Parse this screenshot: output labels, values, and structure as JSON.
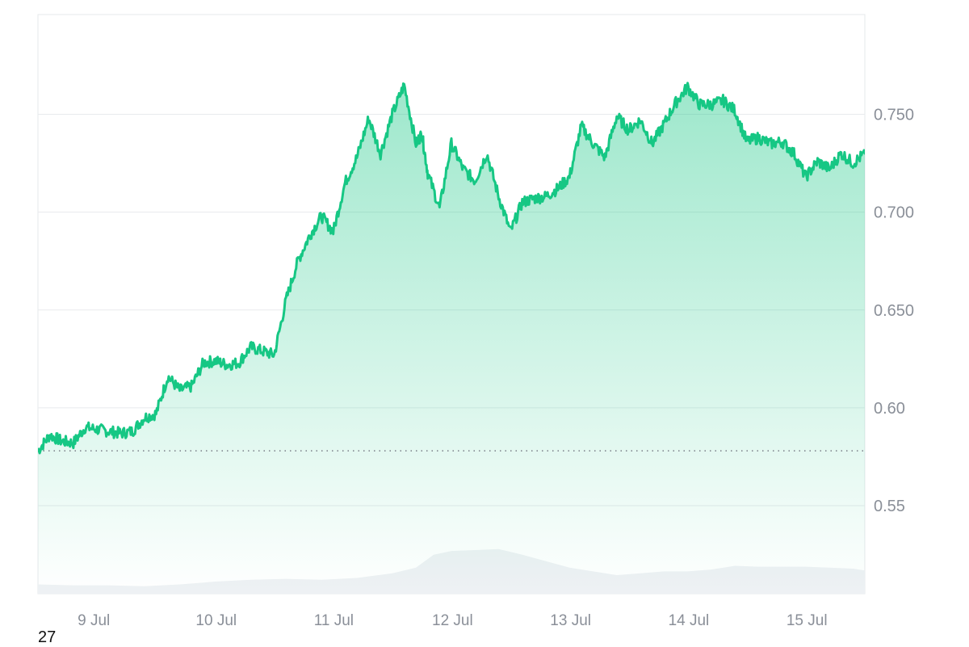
{
  "chart_data": {
    "type": "area",
    "y_ticks": [
      "0.750",
      "0.700",
      "0.650",
      "0.60",
      "0.55"
    ],
    "y_tick_values": [
      0.75,
      0.7,
      0.65,
      0.6,
      0.55
    ],
    "x_ticks": [
      "9 Jul",
      "10 Jul",
      "11 Jul",
      "12 Jul",
      "13 Jul",
      "14 Jul",
      "15 Jul"
    ],
    "ylim": [
      0.505,
      0.801
    ],
    "xlim": [
      8.5,
      15.5
    ],
    "baseline_value": 0.578,
    "series": [
      {
        "x": [
          8.5,
          8.6,
          8.7,
          8.8,
          8.9,
          9.0,
          9.1,
          9.2,
          9.3,
          9.4,
          9.5,
          9.6,
          9.7,
          9.8,
          9.9,
          10.0,
          10.1,
          10.2,
          10.3,
          10.4,
          10.5,
          10.6,
          10.7,
          10.8,
          10.9,
          11.0,
          11.1,
          11.2,
          11.3,
          11.4,
          11.5,
          11.6,
          11.7,
          11.75,
          11.8,
          11.9,
          12.0,
          12.1,
          12.2,
          12.3,
          12.4,
          12.5,
          12.6,
          12.7,
          12.8,
          12.9,
          13.0,
          13.1,
          13.2,
          13.3,
          13.4,
          13.5,
          13.6,
          13.7,
          13.8,
          13.9,
          14.0,
          14.1,
          14.2,
          14.3,
          14.4,
          14.5,
          14.6,
          14.7,
          14.8,
          14.9,
          15.0,
          15.1,
          15.2,
          15.3,
          15.4,
          15.5
        ],
        "y": [
          0.578,
          0.586,
          0.583,
          0.582,
          0.59,
          0.589,
          0.588,
          0.587,
          0.588,
          0.595,
          0.597,
          0.616,
          0.609,
          0.611,
          0.623,
          0.624,
          0.622,
          0.623,
          0.631,
          0.629,
          0.627,
          0.655,
          0.675,
          0.688,
          0.698,
          0.69,
          0.715,
          0.728,
          0.748,
          0.73,
          0.75,
          0.765,
          0.735,
          0.74,
          0.72,
          0.702,
          0.735,
          0.722,
          0.716,
          0.73,
          0.708,
          0.69,
          0.705,
          0.707,
          0.708,
          0.712,
          0.718,
          0.744,
          0.735,
          0.728,
          0.749,
          0.742,
          0.747,
          0.735,
          0.745,
          0.756,
          0.764,
          0.755,
          0.755,
          0.757,
          0.752,
          0.736,
          0.738,
          0.735,
          0.736,
          0.73,
          0.718,
          0.726,
          0.722,
          0.73,
          0.725,
          0.73
        ]
      },
      {
        "type": "volume",
        "x": [
          8.5,
          8.8,
          9.1,
          9.4,
          9.7,
          10.0,
          10.3,
          10.6,
          10.9,
          11.2,
          11.5,
          11.7,
          11.85,
          12.0,
          12.2,
          12.4,
          12.6,
          12.8,
          13.0,
          13.2,
          13.4,
          13.6,
          13.8,
          14.0,
          14.2,
          14.4,
          14.6,
          14.8,
          15.0,
          15.2,
          15.4,
          15.5
        ],
        "y": [
          0.1,
          0.09,
          0.09,
          0.08,
          0.1,
          0.13,
          0.15,
          0.16,
          0.15,
          0.17,
          0.22,
          0.28,
          0.42,
          0.46,
          0.47,
          0.48,
          0.42,
          0.35,
          0.28,
          0.24,
          0.2,
          0.22,
          0.24,
          0.24,
          0.26,
          0.3,
          0.29,
          0.29,
          0.29,
          0.28,
          0.27,
          0.25
        ]
      }
    ]
  },
  "footnote": "27",
  "colors": {
    "line": "#16c784",
    "area_top": "#16c784",
    "volume": "#eef1f4",
    "grid": "#e8eaed",
    "baseline": "#777d86",
    "tick": "#8a8f98"
  }
}
